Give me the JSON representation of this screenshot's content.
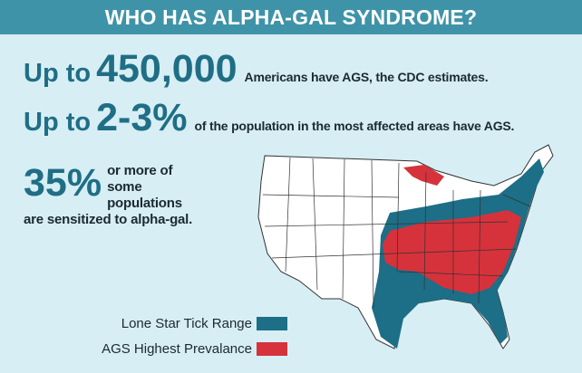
{
  "header": {
    "title": "WHO HAS ALPHA-GAL SYNDROME?"
  },
  "facts": [
    {
      "lead": "Up to",
      "figure": "450,000",
      "text": "Americans have AGS, the CDC estimates."
    },
    {
      "lead": "Up to",
      "figure": "2-3%",
      "text": "of the population in the most affected areas have AGS."
    },
    {
      "figure": "35%",
      "text": "or more of some populations are sensitized to alpha-gal."
    }
  ],
  "legend": [
    {
      "label": "Lone Star Tick Range",
      "color": "#1d6e87"
    },
    {
      "label": "AGS Highest Prevalance",
      "color": "#d6323c"
    }
  ]
}
